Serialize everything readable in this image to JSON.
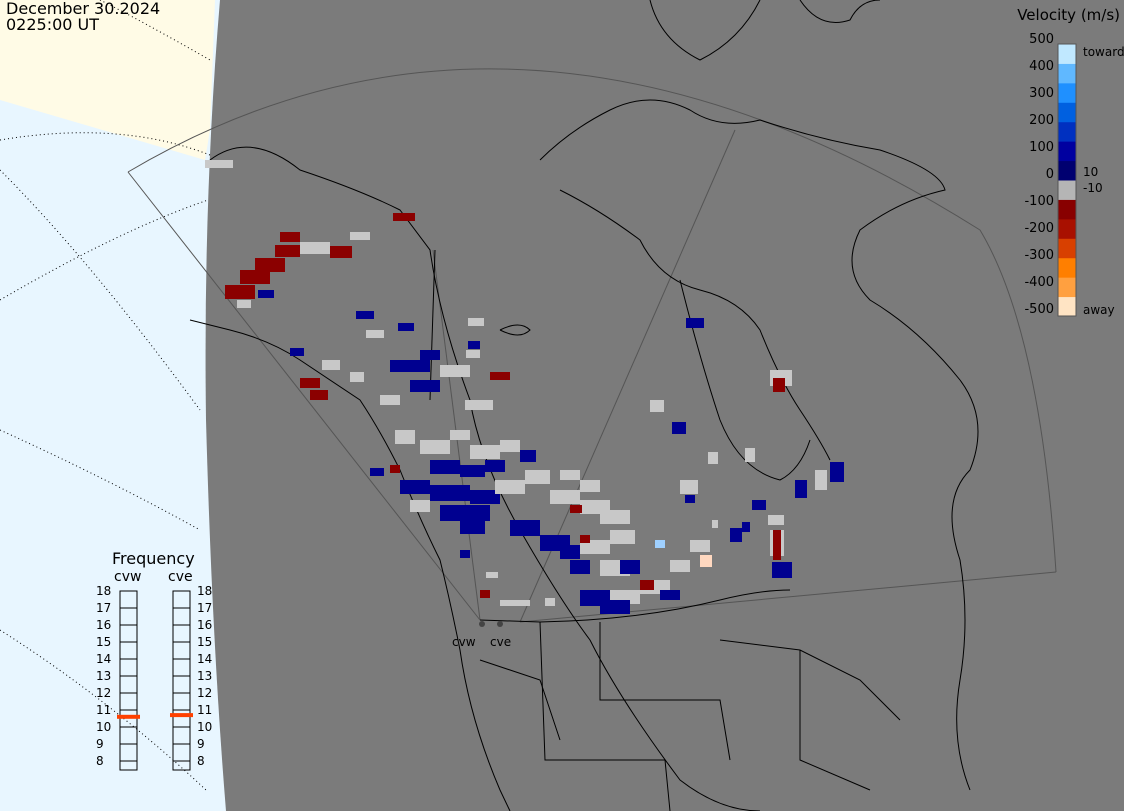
{
  "header": {
    "date": "December 30.2024",
    "time": "0225:00 UT"
  },
  "legend": {
    "title": "Velocity (m/s)",
    "ticks": [
      500,
      400,
      300,
      200,
      100,
      0,
      -100,
      -200,
      -300,
      -400,
      -500
    ],
    "extra_ticks": [
      "10",
      "-10"
    ],
    "toward_label": "toward",
    "away_label": "away",
    "colors": [
      "#ffe4c4",
      "#ffa040",
      "#ff7f00",
      "#d84000",
      "#a81000",
      "#880000",
      "#b5b5b5",
      "#000070",
      "#0000a0",
      "#0030c0",
      "#0060e0",
      "#1f90ff",
      "#60b8ff",
      "#c0e8ff"
    ]
  },
  "frequency": {
    "title": "Frequency",
    "radars": [
      {
        "name": "cvw",
        "value_mhz": 10.6
      },
      {
        "name": "cve",
        "value_mhz": 10.7
      }
    ],
    "scale": [
      "18",
      "17",
      "16",
      "15",
      "14",
      "13",
      "12",
      "11",
      "10",
      "9",
      "8"
    ],
    "marker_color": "#ff4000"
  },
  "sites": [
    {
      "name": "cvw"
    },
    {
      "name": "cve"
    }
  ],
  "colors": {
    "land": "#7b7b7b",
    "ocean": "#e8f6ff",
    "daylight": "#fffbe6",
    "ground_scatter": "#c8c8c8"
  }
}
